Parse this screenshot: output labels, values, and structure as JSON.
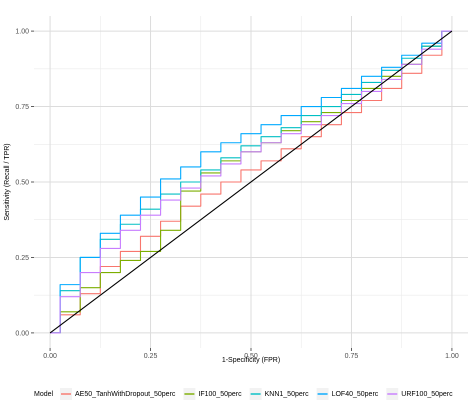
{
  "chart_data": {
    "type": "line",
    "title": "",
    "xlabel": "1-Specificity (FPR)",
    "ylabel": "Sensitivity (Recall / TPR)",
    "xlim": [
      -0.04,
      1.04
    ],
    "ylim": [
      -0.05,
      1.05
    ],
    "x_ticks": [
      0.0,
      0.25,
      0.5,
      0.75,
      1.0
    ],
    "x_tick_labels": [
      "0.00",
      "0.25",
      "0.50",
      "0.75",
      "1.00"
    ],
    "y_ticks": [
      0.0,
      0.25,
      0.5,
      0.75,
      1.0
    ],
    "y_tick_labels": [
      "0.00",
      "0.25",
      "0.50",
      "0.75",
      "1.00"
    ],
    "grid": true,
    "legend_title": "Model",
    "legend_position": "bottom",
    "diagonal": {
      "x": [
        0,
        1
      ],
      "y": [
        0,
        1
      ],
      "color": "#000000"
    },
    "series": [
      {
        "name": "AE50_TanhWithDropout_50perc",
        "color": "#F8766D",
        "x": [
          0.0,
          0.05,
          0.1,
          0.15,
          0.2,
          0.25,
          0.3,
          0.35,
          0.4,
          0.45,
          0.5,
          0.55,
          0.6,
          0.65,
          0.7,
          0.75,
          0.8,
          0.85,
          0.9,
          0.95,
          1.0
        ],
        "y": [
          0.0,
          0.06,
          0.13,
          0.22,
          0.27,
          0.32,
          0.37,
          0.42,
          0.46,
          0.5,
          0.54,
          0.57,
          0.61,
          0.65,
          0.69,
          0.73,
          0.77,
          0.81,
          0.86,
          0.92,
          1.0
        ]
      },
      {
        "name": "IF100_50perc",
        "color": "#7CAE00",
        "x": [
          0.0,
          0.05,
          0.1,
          0.15,
          0.2,
          0.25,
          0.3,
          0.35,
          0.4,
          0.45,
          0.5,
          0.55,
          0.6,
          0.65,
          0.7,
          0.75,
          0.8,
          0.85,
          0.9,
          0.95,
          1.0
        ],
        "y": [
          0.0,
          0.07,
          0.15,
          0.2,
          0.24,
          0.27,
          0.34,
          0.47,
          0.53,
          0.57,
          0.6,
          0.63,
          0.67,
          0.7,
          0.73,
          0.77,
          0.81,
          0.85,
          0.89,
          0.95,
          1.0
        ]
      },
      {
        "name": "KNN1_50perc",
        "color": "#00BFC4",
        "x": [
          0.0,
          0.05,
          0.1,
          0.15,
          0.2,
          0.25,
          0.3,
          0.35,
          0.4,
          0.45,
          0.5,
          0.55,
          0.6,
          0.65,
          0.7,
          0.75,
          0.8,
          0.85,
          0.9,
          0.95,
          1.0
        ],
        "y": [
          0.0,
          0.14,
          0.25,
          0.31,
          0.36,
          0.41,
          0.46,
          0.5,
          0.54,
          0.58,
          0.62,
          0.65,
          0.68,
          0.72,
          0.75,
          0.79,
          0.83,
          0.87,
          0.91,
          0.95,
          1.0
        ]
      },
      {
        "name": "LOF40_50perc",
        "color": "#00A9FF",
        "x": [
          0.0,
          0.05,
          0.1,
          0.15,
          0.2,
          0.25,
          0.3,
          0.35,
          0.4,
          0.45,
          0.5,
          0.55,
          0.6,
          0.65,
          0.7,
          0.75,
          0.8,
          0.85,
          0.9,
          0.95,
          1.0
        ],
        "y": [
          0.0,
          0.16,
          0.25,
          0.33,
          0.39,
          0.45,
          0.51,
          0.55,
          0.6,
          0.63,
          0.66,
          0.69,
          0.72,
          0.75,
          0.78,
          0.81,
          0.85,
          0.88,
          0.92,
          0.96,
          1.0
        ]
      },
      {
        "name": "URF100_50perc",
        "color": "#C77CFF",
        "x": [
          0.0,
          0.05,
          0.1,
          0.15,
          0.2,
          0.25,
          0.3,
          0.35,
          0.4,
          0.45,
          0.5,
          0.55,
          0.6,
          0.65,
          0.7,
          0.75,
          0.8,
          0.85,
          0.9,
          0.95,
          1.0
        ],
        "y": [
          0.0,
          0.12,
          0.2,
          0.28,
          0.34,
          0.39,
          0.44,
          0.48,
          0.52,
          0.56,
          0.6,
          0.63,
          0.66,
          0.69,
          0.72,
          0.76,
          0.8,
          0.84,
          0.89,
          0.94,
          1.0
        ]
      }
    ]
  }
}
